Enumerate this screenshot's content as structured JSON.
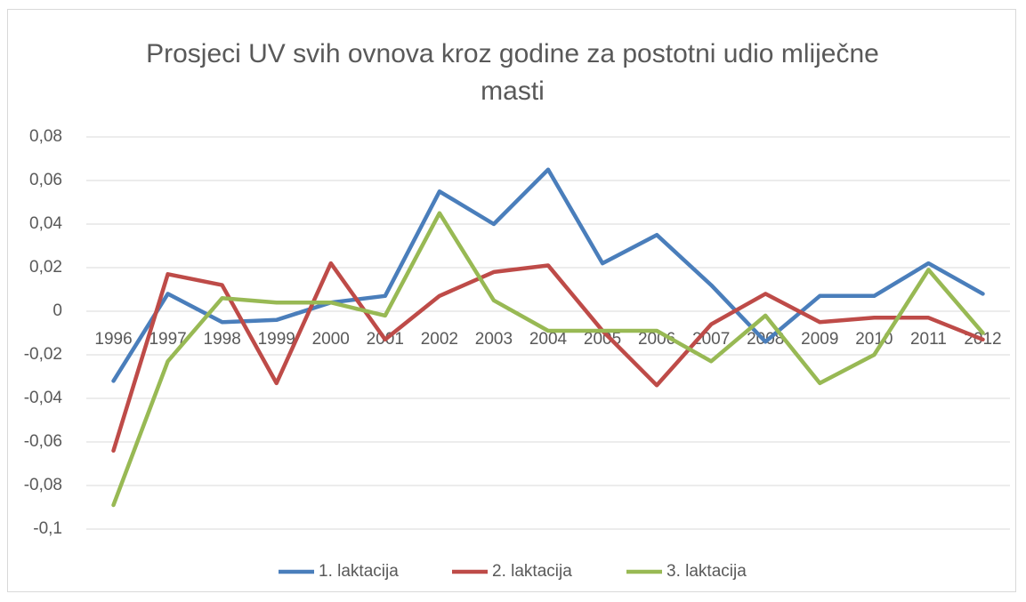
{
  "chart_data": {
    "type": "line",
    "title": "Prosjeci UV svih ovnova kroz godine za postotni udio mliječne masti",
    "categories": [
      "1996",
      "1997",
      "1998",
      "1999",
      "2000",
      "2001",
      "2002",
      "2003",
      "2004",
      "2005",
      "2006",
      "2007",
      "2008",
      "2009",
      "2010",
      "2011",
      "2012"
    ],
    "series": [
      {
        "name": "1. laktacija",
        "color": "#4a7ebb",
        "values": [
          -0.032,
          0.008,
          -0.005,
          -0.004,
          0.004,
          0.007,
          0.055,
          0.04,
          0.065,
          0.022,
          0.035,
          0.012,
          -0.014,
          0.007,
          0.007,
          0.022,
          0.008
        ]
      },
      {
        "name": "2. laktacija",
        "color": "#be4b48",
        "values": [
          -0.064,
          0.017,
          0.012,
          -0.033,
          0.022,
          -0.013,
          0.007,
          0.018,
          0.021,
          -0.009,
          -0.034,
          -0.006,
          0.008,
          -0.005,
          -0.003,
          -0.003,
          -0.013
        ]
      },
      {
        "name": "3. laktacija",
        "color": "#98b954",
        "values": [
          -0.089,
          -0.023,
          0.006,
          0.004,
          0.004,
          -0.002,
          0.045,
          0.005,
          -0.009,
          -0.009,
          -0.009,
          -0.023,
          -0.002,
          -0.033,
          -0.02,
          0.019,
          -0.01
        ]
      }
    ],
    "ylim": [
      -0.1,
      0.08
    ],
    "yticks": [
      {
        "value": -0.1,
        "label": "-0,1"
      },
      {
        "value": -0.08,
        "label": "-0,08"
      },
      {
        "value": -0.06,
        "label": "-0,06"
      },
      {
        "value": -0.04,
        "label": "-0,04"
      },
      {
        "value": -0.02,
        "label": "-0,02"
      },
      0,
      {
        "value": 0.02,
        "label": "0,02"
      },
      {
        "value": 0.04,
        "label": "0,04"
      },
      {
        "value": 0.06,
        "label": "0,06"
      },
      {
        "value": 0.08,
        "label": "0,08"
      }
    ],
    "grid": true,
    "legend": "bottom"
  }
}
